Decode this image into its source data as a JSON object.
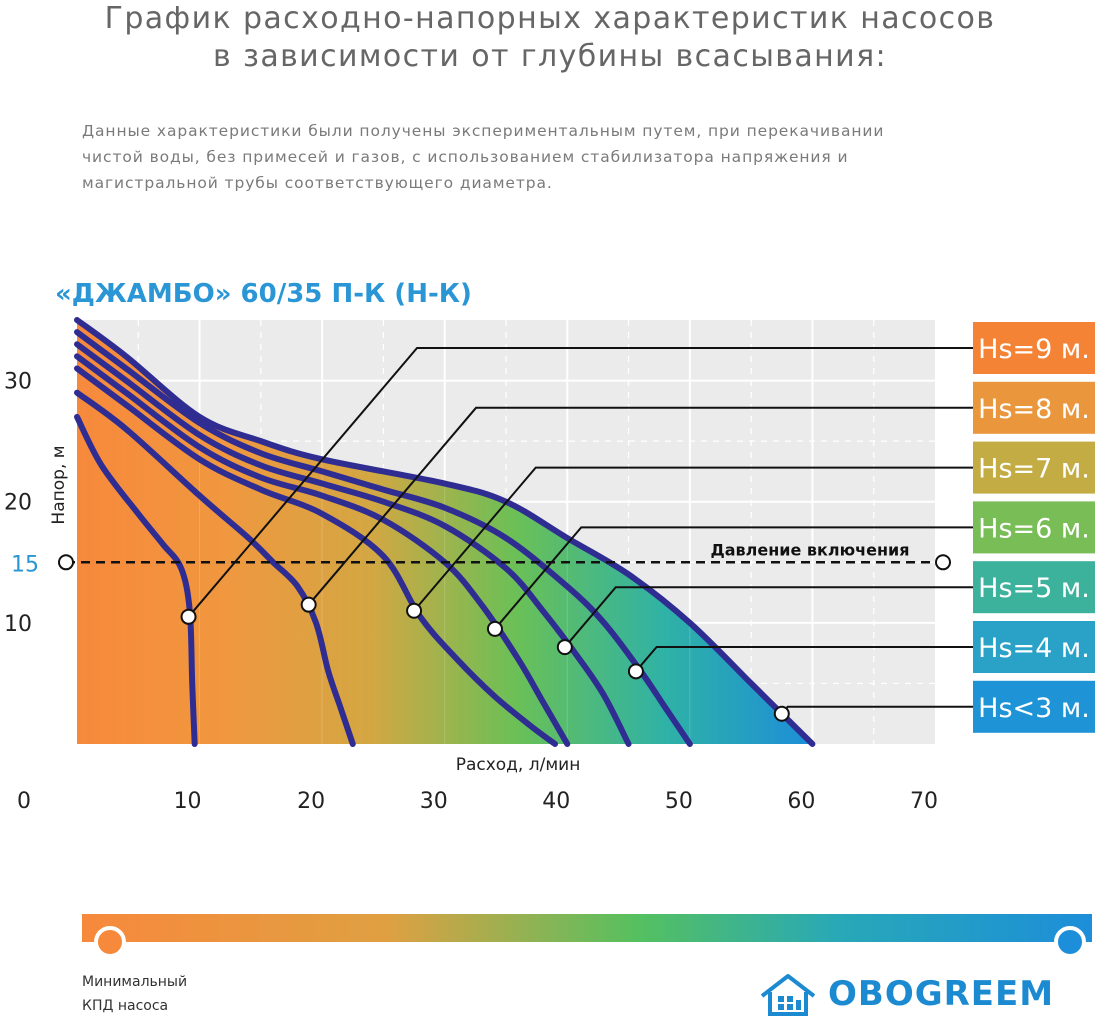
{
  "header": {
    "title_line1": "График расходно-напорных характеристик насосов",
    "title_line2": "в зависимости от глубины всасывания:",
    "desc_line1": "Данные характеристики были получены экспериментальным путем, при перекачивании",
    "desc_line2": "чистой воды, без примесей и газов, с использованием стабилизатора напряжения и",
    "desc_line3": "магистральной трубы соответствующего диаметра."
  },
  "chart_data": {
    "type": "line",
    "title": "«ДЖАМБО» 60/35 П-К (Н-К)",
    "xlabel": "Расход, л/мин",
    "ylabel": "Напор, м",
    "xlim": [
      0,
      70
    ],
    "ylim": [
      0,
      35
    ],
    "x_ticks": [
      "0",
      "10",
      "20",
      "30",
      "40",
      "50",
      "60",
      "70"
    ],
    "x_tick_values": [
      0,
      10,
      20,
      30,
      40,
      50,
      60,
      70
    ],
    "y_ticks": [
      "10",
      "20",
      "30"
    ],
    "y_tick_values": [
      10,
      20,
      30
    ],
    "threshold": {
      "value": 15,
      "label": "15",
      "text": "Давление включения"
    },
    "series": [
      {
        "name": "Hs<3 м.",
        "color": "#1e97d4",
        "marker": [
          57.5,
          2.5
        ],
        "x": [
          0,
          4,
          10,
          15,
          20,
          30,
          35,
          40,
          45,
          50,
          55,
          58,
          60
        ],
        "y": [
          35,
          32,
          27,
          25,
          23.5,
          21.5,
          20,
          17,
          14,
          10,
          5,
          2,
          0
        ]
      },
      {
        "name": "Hs=4 м.",
        "color": "#27a4b4",
        "marker": [
          45.6,
          6
        ],
        "x": [
          0,
          4,
          10,
          15,
          20,
          25,
          30,
          35,
          40,
          43,
          46,
          48,
          50
        ],
        "y": [
          34,
          31,
          26.5,
          24,
          22.5,
          21,
          19.5,
          17,
          13,
          10,
          6,
          3,
          0
        ]
      },
      {
        "name": "Hs=5 м.",
        "color": "#3bb07e",
        "marker": [
          39.8,
          8
        ],
        "x": [
          0,
          4,
          10,
          15,
          20,
          25,
          30,
          35,
          38,
          41,
          43,
          45
        ],
        "y": [
          33,
          30,
          25.5,
          23,
          21.5,
          20,
          18,
          14.5,
          11,
          7,
          4,
          0
        ]
      },
      {
        "name": "Hs=6 м.",
        "color": "#6ab855",
        "marker": [
          34.1,
          9.5
        ],
        "x": [
          0,
          4,
          10,
          15,
          20,
          25,
          30,
          33,
          36,
          38,
          40
        ],
        "y": [
          32,
          29,
          24.5,
          22,
          20.5,
          18.5,
          15,
          11.5,
          7,
          3.5,
          0
        ]
      },
      {
        "name": "Hs=7 м.",
        "color": "#b5b038",
        "marker": [
          27.5,
          11
        ],
        "x": [
          0,
          4,
          10,
          15,
          20,
          25,
          28,
          31,
          34,
          37,
          39
        ],
        "y": [
          31,
          28,
          23.5,
          21,
          19,
          15.5,
          10.5,
          7,
          4,
          1.5,
          0
        ]
      },
      {
        "name": "Hs=8 м.",
        "color": "#e29b3b",
        "marker": [
          18.9,
          11.5
        ],
        "x": [
          0,
          4,
          10,
          14,
          16,
          18,
          19.5,
          20.5,
          21.5,
          22.5
        ],
        "y": [
          29,
          26,
          20.5,
          17,
          15,
          13,
          10,
          6,
          3,
          0
        ]
      },
      {
        "name": "Hs=9 м.",
        "color": "#f28a38",
        "marker": [
          9.1,
          10.5
        ],
        "x": [
          0,
          2,
          5,
          7,
          8.5,
          9.2,
          9.4,
          9.6
        ],
        "y": [
          27,
          23,
          19,
          16.5,
          14.5,
          11,
          5,
          0
        ]
      }
    ],
    "label_order": [
      "Hs=9 м.",
      "Hs=8 м.",
      "Hs=7 м.",
      "Hs=6 м.",
      "Hs=5 м.",
      "Hs=4 м.",
      "Hs<3 м."
    ],
    "label_colors": [
      "#f58335",
      "#e9963c",
      "#c3ac44",
      "#78bd55",
      "#3cb19c",
      "#2aa2c7",
      "#1e93d6"
    ],
    "curve_stroke": "#2f2d92",
    "fill_gradient": [
      "#f7893c",
      "#f0973f",
      "#d3a743",
      "#69c057",
      "#2fb2a6",
      "#1d8ed9"
    ],
    "plot_bg": "#ebebeb"
  },
  "legend": {
    "caption_line1": "Минимальный",
    "caption_line2": "КПД насоса",
    "gradient": [
      "#f7893c",
      "#e0a042",
      "#55c060",
      "#28a8b8",
      "#1d8ed9"
    ]
  },
  "brand": {
    "name": "OBOGREEM",
    "color": "#1c8ad0",
    "icon": "house-logo-icon"
  }
}
